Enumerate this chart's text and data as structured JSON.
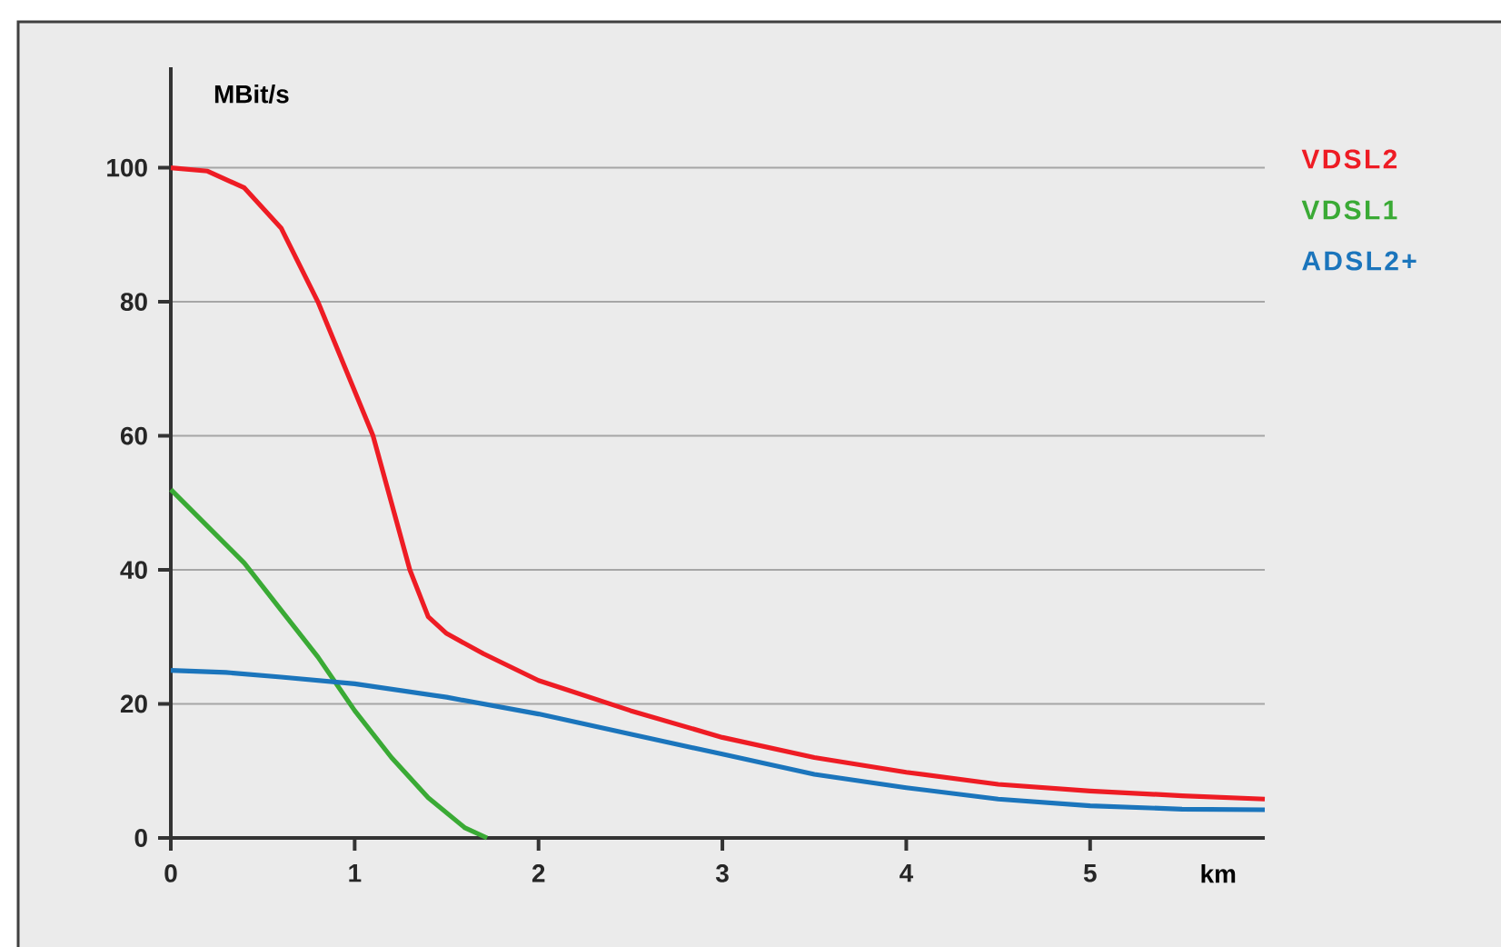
{
  "chart_data": {
    "type": "line",
    "xlabel": "km",
    "ylabel": "MBit/s",
    "xlim": [
      0,
      5.95
    ],
    "ylim": [
      0,
      115
    ],
    "xticks": [
      0,
      1,
      2,
      3,
      4,
      5
    ],
    "yticks": [
      0,
      20,
      40,
      60,
      80,
      100
    ],
    "grid": "y",
    "legend": "top right",
    "marker": "none",
    "line_style": "solid",
    "series": [
      {
        "name": "VDSL2",
        "color": "#ee1c24",
        "x": [
          0,
          0.2,
          0.4,
          0.6,
          0.8,
          0.95,
          1.1,
          1.2,
          1.3,
          1.4,
          1.5,
          1.7,
          2,
          2.5,
          3,
          3.5,
          4,
          4.5,
          5,
          5.5,
          5.95
        ],
        "values": [
          100,
          99.5,
          97,
          91,
          80,
          70,
          60,
          50,
          40,
          33,
          30.5,
          27.5,
          23.5,
          19,
          15,
          12,
          9.8,
          8,
          7,
          6.3,
          5.8
        ]
      },
      {
        "name": "VDSL1",
        "color": "#3aaa35",
        "x": [
          0,
          0.2,
          0.4,
          0.6,
          0.8,
          1,
          1.2,
          1.4,
          1.6,
          1.72
        ],
        "values": [
          52,
          46.5,
          41,
          34,
          27,
          19,
          12,
          6,
          1.5,
          0
        ]
      },
      {
        "name": "ADSL2+",
        "color": "#1b75bc",
        "x": [
          0,
          0.3,
          0.6,
          1,
          1.5,
          2,
          2.5,
          3,
          3.5,
          4,
          4.5,
          5,
          5.5,
          5.95
        ],
        "values": [
          25,
          24.7,
          24,
          23,
          21,
          18.5,
          15.5,
          12.5,
          9.5,
          7.5,
          5.8,
          4.8,
          4.3,
          4.2
        ]
      }
    ]
  }
}
